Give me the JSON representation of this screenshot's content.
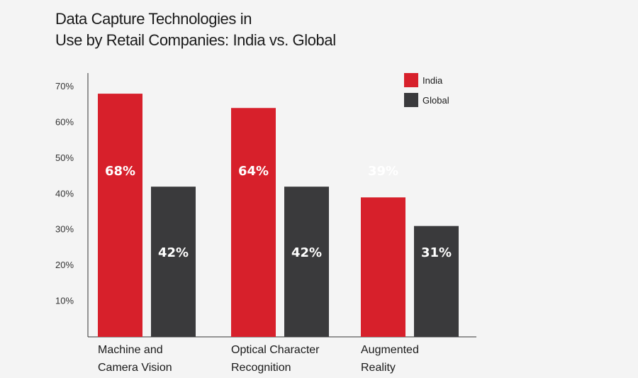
{
  "chart_data": {
    "type": "bar",
    "title": "Data Capture Technologies in\nUse by Retail Companies: India vs. Global",
    "categories": [
      [
        "Machine and",
        "Camera Vision"
      ],
      [
        "Optical Character",
        "Recognition"
      ],
      [
        "Augmented",
        "Reality"
      ]
    ],
    "series": [
      {
        "name": "India",
        "color": "#d7202b",
        "values": [
          68,
          64,
          39
        ],
        "labels": [
          "68%",
          "64%",
          "39%"
        ]
      },
      {
        "name": "Global",
        "color": "#3a3a3c",
        "values": [
          42,
          42,
          31
        ],
        "labels": [
          "42%",
          "42%",
          "31%"
        ]
      }
    ],
    "yticks": [
      "10%",
      "20%",
      "30%",
      "40%",
      "50%",
      "60%",
      "70%"
    ],
    "ylim": [
      0,
      70
    ],
    "legend_position": "top-right",
    "grid": false
  }
}
